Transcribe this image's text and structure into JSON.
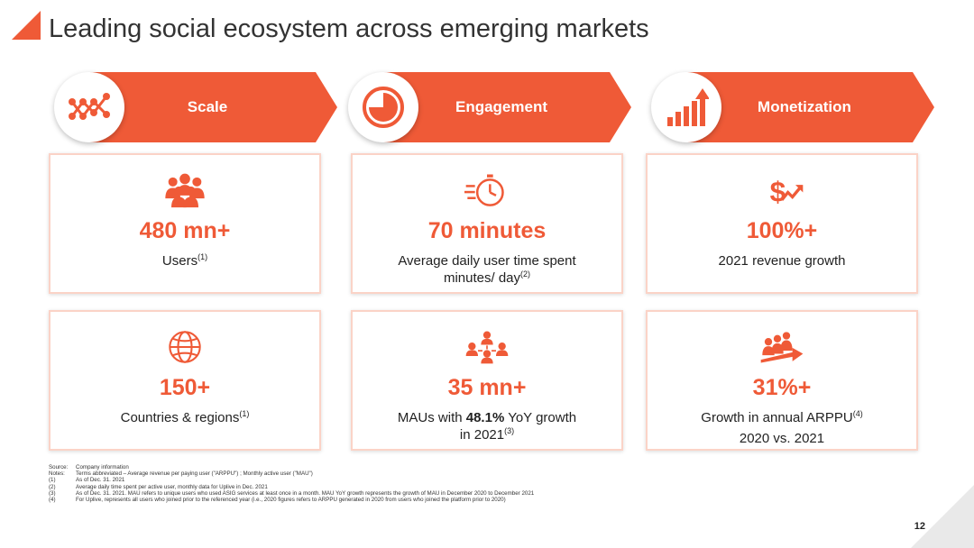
{
  "slide": {
    "title": "Leading social ecosystem across emerging markets",
    "page_number": "12",
    "accent_color": "#ef5a37"
  },
  "pillars": [
    {
      "label": "Scale",
      "icon": "network-graph-icon"
    },
    {
      "label": "Engagement",
      "icon": "pie-timer-icon"
    },
    {
      "label": "Monetization",
      "icon": "growth-bars-arrow-icon"
    }
  ],
  "metrics": [
    {
      "icon": "people-group-icon",
      "value": "480 mn+",
      "desc": "Users",
      "note": "(1)"
    },
    {
      "icon": "stopwatch-icon",
      "value": "70 minutes",
      "desc_line1": "Average daily user time spent",
      "desc_line2": "minutes/ day",
      "note": "(2)"
    },
    {
      "icon": "dollar-up-arrow-icon",
      "value": "100%+",
      "desc": "2021 revenue growth"
    },
    {
      "icon": "globe-icon",
      "value": "150+",
      "desc": "Countries & regions",
      "note": "(1)"
    },
    {
      "icon": "connected-users-icon",
      "value": "35 mn+",
      "desc_pre": "MAUs with ",
      "desc_bold": "48.1%",
      "desc_post": " YoY growth",
      "desc_line2": "in 2021",
      "note": "(3)"
    },
    {
      "icon": "team-growth-arrow-icon",
      "value": "31%+",
      "desc_line1": "Growth in annual ARPPU",
      "note": "(4)",
      "desc_line2": "2020 vs. 2021"
    }
  ],
  "footnotes": [
    {
      "key": "Source:",
      "text": "Company information"
    },
    {
      "key": "Notes:",
      "text": "Terms abbreviated – Average revenue per paying user (\"ARPPU\") ; Monthly active user (\"MAU\")"
    },
    {
      "key": "(1)",
      "text": "As of Dec. 31. 2021"
    },
    {
      "key": "(2)",
      "text": "Average daily time spent per active user, monthly data for Uplive in Dec. 2021"
    },
    {
      "key": "(3)",
      "text": "As of Dec. 31. 2021. MAU refers to unique users who used ASIG services at least once in a month. MAU YoY growth represents the growth of MAU in December 2020 to December 2021"
    },
    {
      "key": "(4)",
      "text": "For Uplive, represents all users who joined prior to the referenced year (i.e., 2020 figures refers to ARPPU generated in 2020 from users who joined the platform prior to 2020)"
    }
  ]
}
